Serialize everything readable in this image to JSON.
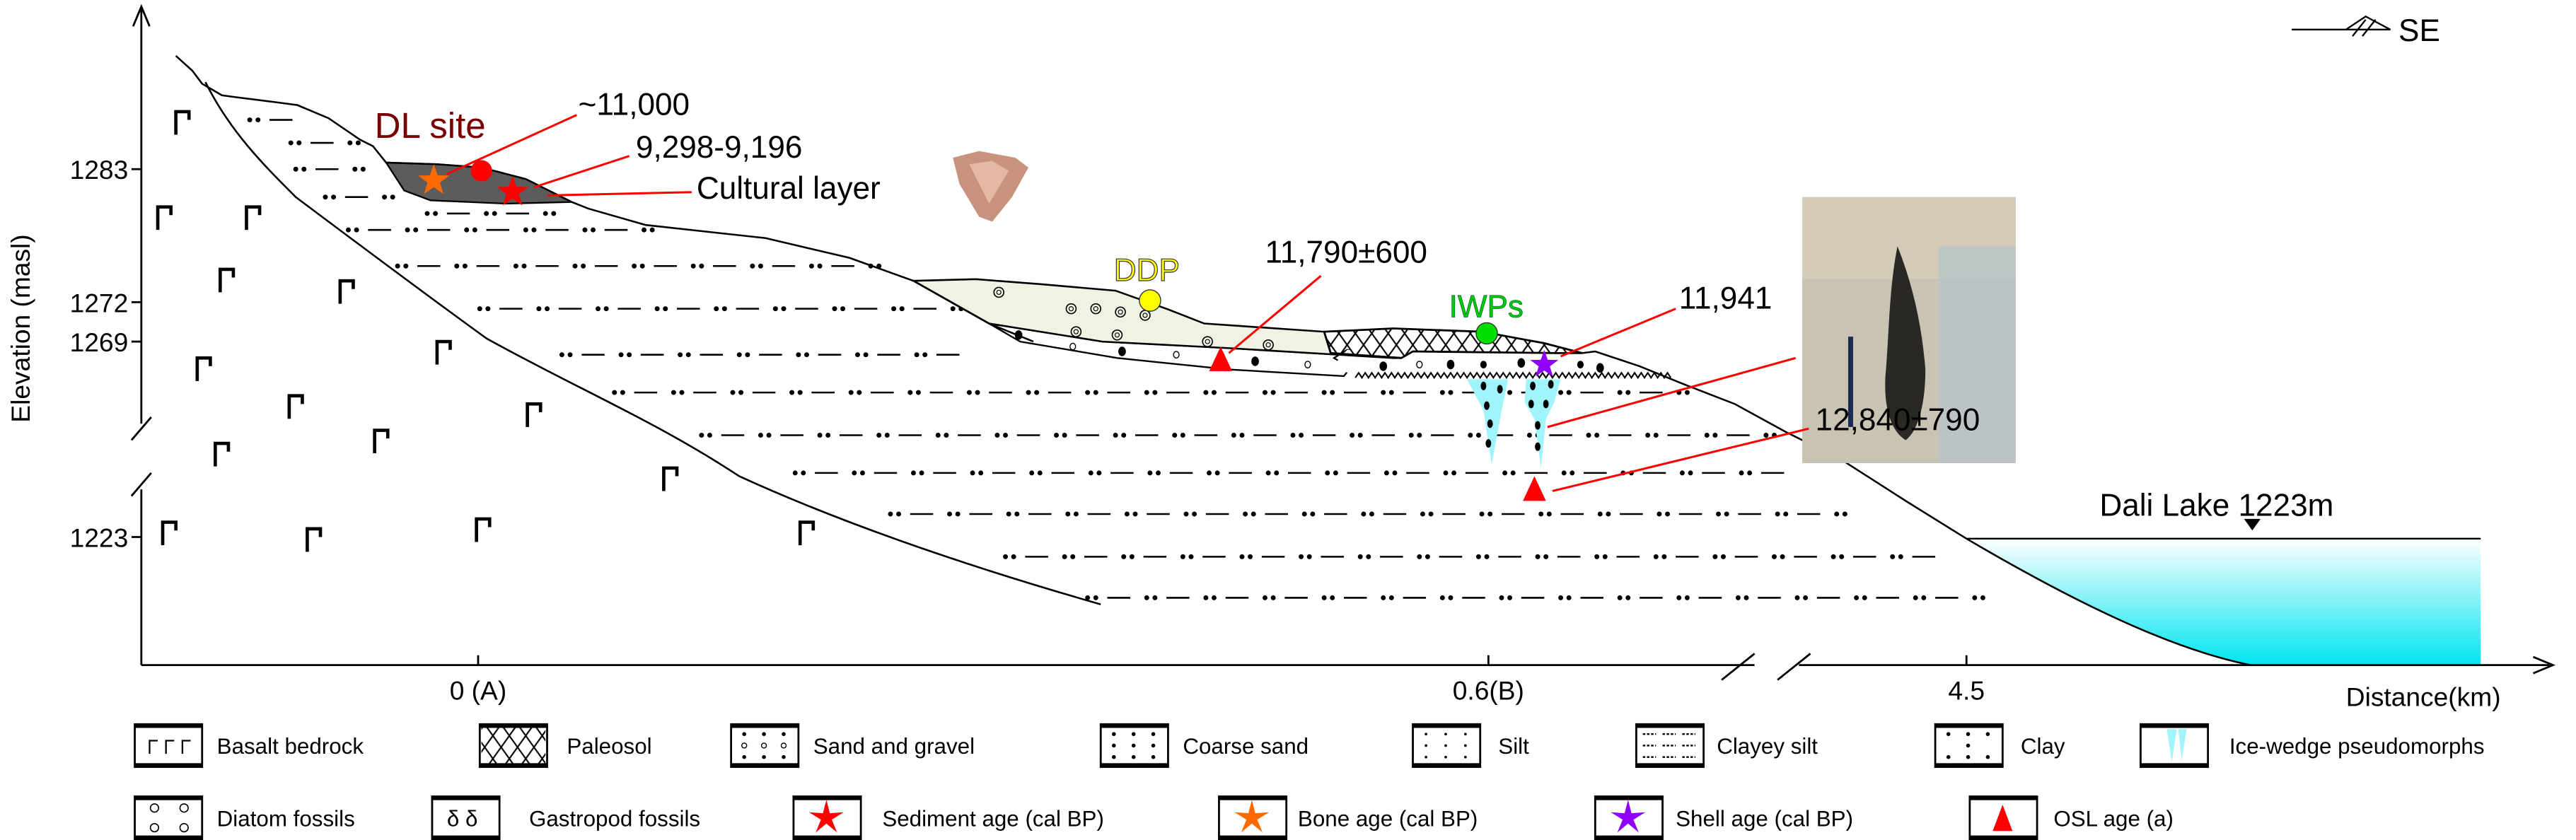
{
  "axes": {
    "y_label": "Elevation (masl)",
    "y_ticks": [
      "1283",
      "1272",
      "1269",
      "1223"
    ],
    "x_label": "Distance(km)",
    "x_ticks": [
      "0 (A)",
      "0.6(B)",
      "4.5"
    ],
    "direction": "SE"
  },
  "annotations": {
    "site": "DL site",
    "age_bone": "~11,000",
    "age_sediment": "9,298-9,196",
    "cultural_layer": "Cultural layer",
    "ddp": "DDP",
    "osl_upper": "11,790±600",
    "iwps": "IWPs",
    "shell_age": "11,941",
    "osl_lower": "12,840±790",
    "lake": "Dali Lake  1223m"
  },
  "legend": {
    "row1": [
      "Basalt bedrock",
      "Paleosol",
      "Sand and gravel",
      "Coarse sand",
      "Silt",
      "Clayey silt",
      "Clay",
      "Ice-wedge pseudomorphs"
    ],
    "row2": [
      "Diatom fossils",
      "Gastropod fossils",
      "Sediment age (cal BP)",
      "Bone  age (cal BP)",
      "Shell  age (cal BP)",
      "OSL age (a)"
    ]
  },
  "colors": {
    "sediment_age": "#ff0000",
    "bone_age": "#ff6a00",
    "shell_age": "#8f00ff",
    "osl_age": "#ff0000",
    "ddp": "#ffff00",
    "iwps": "#00dd00",
    "site_label": "#7a0000",
    "cultural_layer": "#5c5c5c",
    "ddp_layer": "#f2f2e4",
    "ice_wedge": "#9ff5fb",
    "lake": "#00e5f0",
    "leader": "#ff0000"
  }
}
